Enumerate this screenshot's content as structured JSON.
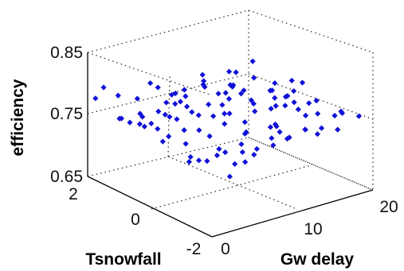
{
  "chart_data": {
    "type": "scatter3d",
    "zlabel": "efficiency",
    "ylabel": "Tsnowfall",
    "xlabel": "Gw delay",
    "xlim": [
      0,
      20
    ],
    "ylim": [
      -2,
      2
    ],
    "zlim": [
      0.65,
      0.85
    ],
    "xticks": [
      "0",
      "10",
      "20"
    ],
    "yticks": [
      "2",
      "0",
      "-2"
    ],
    "zticks": [
      "0.85",
      "0.75",
      "0.65"
    ],
    "grid": true,
    "marker_color": "#1010d8",
    "marker": "diamond",
    "points": [
      [
        0.5,
        0.3,
        0.77
      ],
      [
        1.0,
        0.9,
        0.76
      ],
      [
        1.5,
        1.3,
        0.755
      ],
      [
        2.0,
        0.1,
        0.745
      ],
      [
        0.8,
        -0.4,
        0.77
      ],
      [
        1.8,
        -0.8,
        0.735
      ],
      [
        2.5,
        0.6,
        0.76
      ],
      [
        3.0,
        1.1,
        0.745
      ],
      [
        3.5,
        -0.2,
        0.765
      ],
      [
        4.0,
        0.4,
        0.77
      ],
      [
        4.5,
        -1.0,
        0.74
      ],
      [
        5.0,
        0.8,
        0.76
      ],
      [
        5.5,
        -0.5,
        0.755
      ],
      [
        6.0,
        0.2,
        0.775
      ],
      [
        6.5,
        -1.3,
        0.745
      ],
      [
        7.0,
        1.0,
        0.765
      ],
      [
        7.5,
        -0.1,
        0.77
      ],
      [
        8.0,
        0.5,
        0.755
      ],
      [
        8.5,
        -0.9,
        0.76
      ],
      [
        9.0,
        0.0,
        0.78
      ],
      [
        9.5,
        -0.6,
        0.765
      ],
      [
        10.0,
        0.7,
        0.76
      ],
      [
        10.5,
        -1.2,
        0.75
      ],
      [
        11.0,
        0.3,
        0.775
      ],
      [
        11.5,
        -0.4,
        0.77
      ],
      [
        12.0,
        0.9,
        0.765
      ],
      [
        12.5,
        -0.8,
        0.755
      ],
      [
        13.0,
        0.1,
        0.77
      ],
      [
        13.5,
        -1.5,
        0.76
      ],
      [
        14.0,
        0.6,
        0.77
      ],
      [
        14.5,
        -0.3,
        0.765
      ],
      [
        15.0,
        1.2,
        0.76
      ],
      [
        2.2,
        -0.3,
        0.79
      ],
      [
        3.2,
        -1.4,
        0.765
      ],
      [
        4.2,
        1.4,
        0.75
      ],
      [
        5.2,
        -1.6,
        0.77
      ],
      [
        6.2,
        0.9,
        0.785
      ],
      [
        7.2,
        -0.7,
        0.79
      ],
      [
        8.2,
        1.3,
        0.77
      ],
      [
        9.2,
        -1.5,
        0.78
      ],
      [
        10.2,
        0.2,
        0.79
      ],
      [
        11.2,
        -1.0,
        0.79
      ],
      [
        12.2,
        0.5,
        0.785
      ],
      [
        13.2,
        -0.6,
        0.79
      ],
      [
        14.2,
        -1.1,
        0.78
      ],
      [
        15.2,
        0.0,
        0.78
      ],
      [
        16.0,
        -0.5,
        0.77
      ],
      [
        16.5,
        0.4,
        0.765
      ],
      [
        17.0,
        -1.0,
        0.76
      ],
      [
        17.5,
        0.1,
        0.76
      ],
      [
        18.0,
        -0.7,
        0.77
      ],
      [
        18.5,
        -1.4,
        0.765
      ],
      [
        19.0,
        -0.2,
        0.75
      ],
      [
        19.5,
        -0.9,
        0.745
      ],
      [
        19.8,
        -1.6,
        0.76
      ],
      [
        19.2,
        0.6,
        0.74
      ],
      [
        3.8,
        0.0,
        0.805
      ],
      [
        5.8,
        -0.9,
        0.8
      ],
      [
        7.8,
        0.3,
        0.81
      ],
      [
        9.8,
        -0.4,
        0.805
      ],
      [
        11.8,
        -1.3,
        0.8
      ],
      [
        13.8,
        0.8,
        0.795
      ],
      [
        14.8,
        -0.8,
        0.8
      ],
      [
        12.8,
        -1.7,
        0.79
      ],
      [
        10.8,
        1.1,
        0.795
      ],
      [
        8.8,
        -1.8,
        0.79
      ],
      [
        6.8,
        1.5,
        0.78
      ],
      [
        4.8,
        -0.6,
        0.72
      ],
      [
        6.4,
        0.5,
        0.715
      ],
      [
        8.6,
        -0.2,
        0.71
      ],
      [
        10.6,
        -0.7,
        0.72
      ],
      [
        12.6,
        0.2,
        0.715
      ],
      [
        14.6,
        -0.4,
        0.725
      ],
      [
        16.2,
        -1.2,
        0.735
      ],
      [
        5.6,
        1.2,
        0.725
      ],
      [
        7.6,
        -1.1,
        0.72
      ],
      [
        9.6,
        0.9,
        0.715
      ],
      [
        11.6,
        0.6,
        0.725
      ],
      [
        13.6,
        -0.9,
        0.73
      ],
      [
        15.6,
        0.7,
        0.74
      ],
      [
        2.8,
        1.7,
        0.74
      ],
      [
        1.2,
        -1.0,
        0.75
      ],
      [
        0.3,
        -1.5,
        0.76
      ],
      [
        0.2,
        1.8,
        0.78
      ],
      [
        1.6,
        1.9,
        0.79
      ],
      [
        3.4,
        1.9,
        0.77
      ],
      [
        5.4,
        1.8,
        0.76
      ],
      [
        7.4,
        1.9,
        0.775
      ],
      [
        17.8,
        -0.3,
        0.79
      ],
      [
        18.8,
        0.3,
        0.775
      ],
      [
        17.2,
        -1.7,
        0.78
      ],
      [
        16.8,
        1.0,
        0.77
      ],
      [
        13.0,
        1.6,
        0.755
      ],
      [
        11.0,
        1.7,
        0.745
      ],
      [
        9.0,
        1.8,
        0.74
      ],
      [
        15.8,
        1.5,
        0.75
      ],
      [
        6.0,
        -1.8,
        0.755
      ],
      [
        4.0,
        -1.7,
        0.745
      ],
      [
        2.6,
        -1.9,
        0.735
      ],
      [
        8.0,
        -1.9,
        0.765
      ],
      [
        10.0,
        -1.9,
        0.77
      ],
      [
        12.0,
        -1.9,
        0.775
      ],
      [
        14.0,
        -1.9,
        0.77
      ],
      [
        16.0,
        -1.9,
        0.76
      ],
      [
        12.4,
        -0.1,
        0.84
      ],
      [
        13.6,
        -0.5,
        0.81
      ],
      [
        11.4,
        0.4,
        0.815
      ],
      [
        9.4,
        0.7,
        0.8
      ],
      [
        7.0,
        0.7,
        0.795
      ],
      [
        5.0,
        0.1,
        0.79
      ],
      [
        3.0,
        0.5,
        0.78
      ],
      [
        1.4,
        0.6,
        0.775
      ]
    ]
  }
}
